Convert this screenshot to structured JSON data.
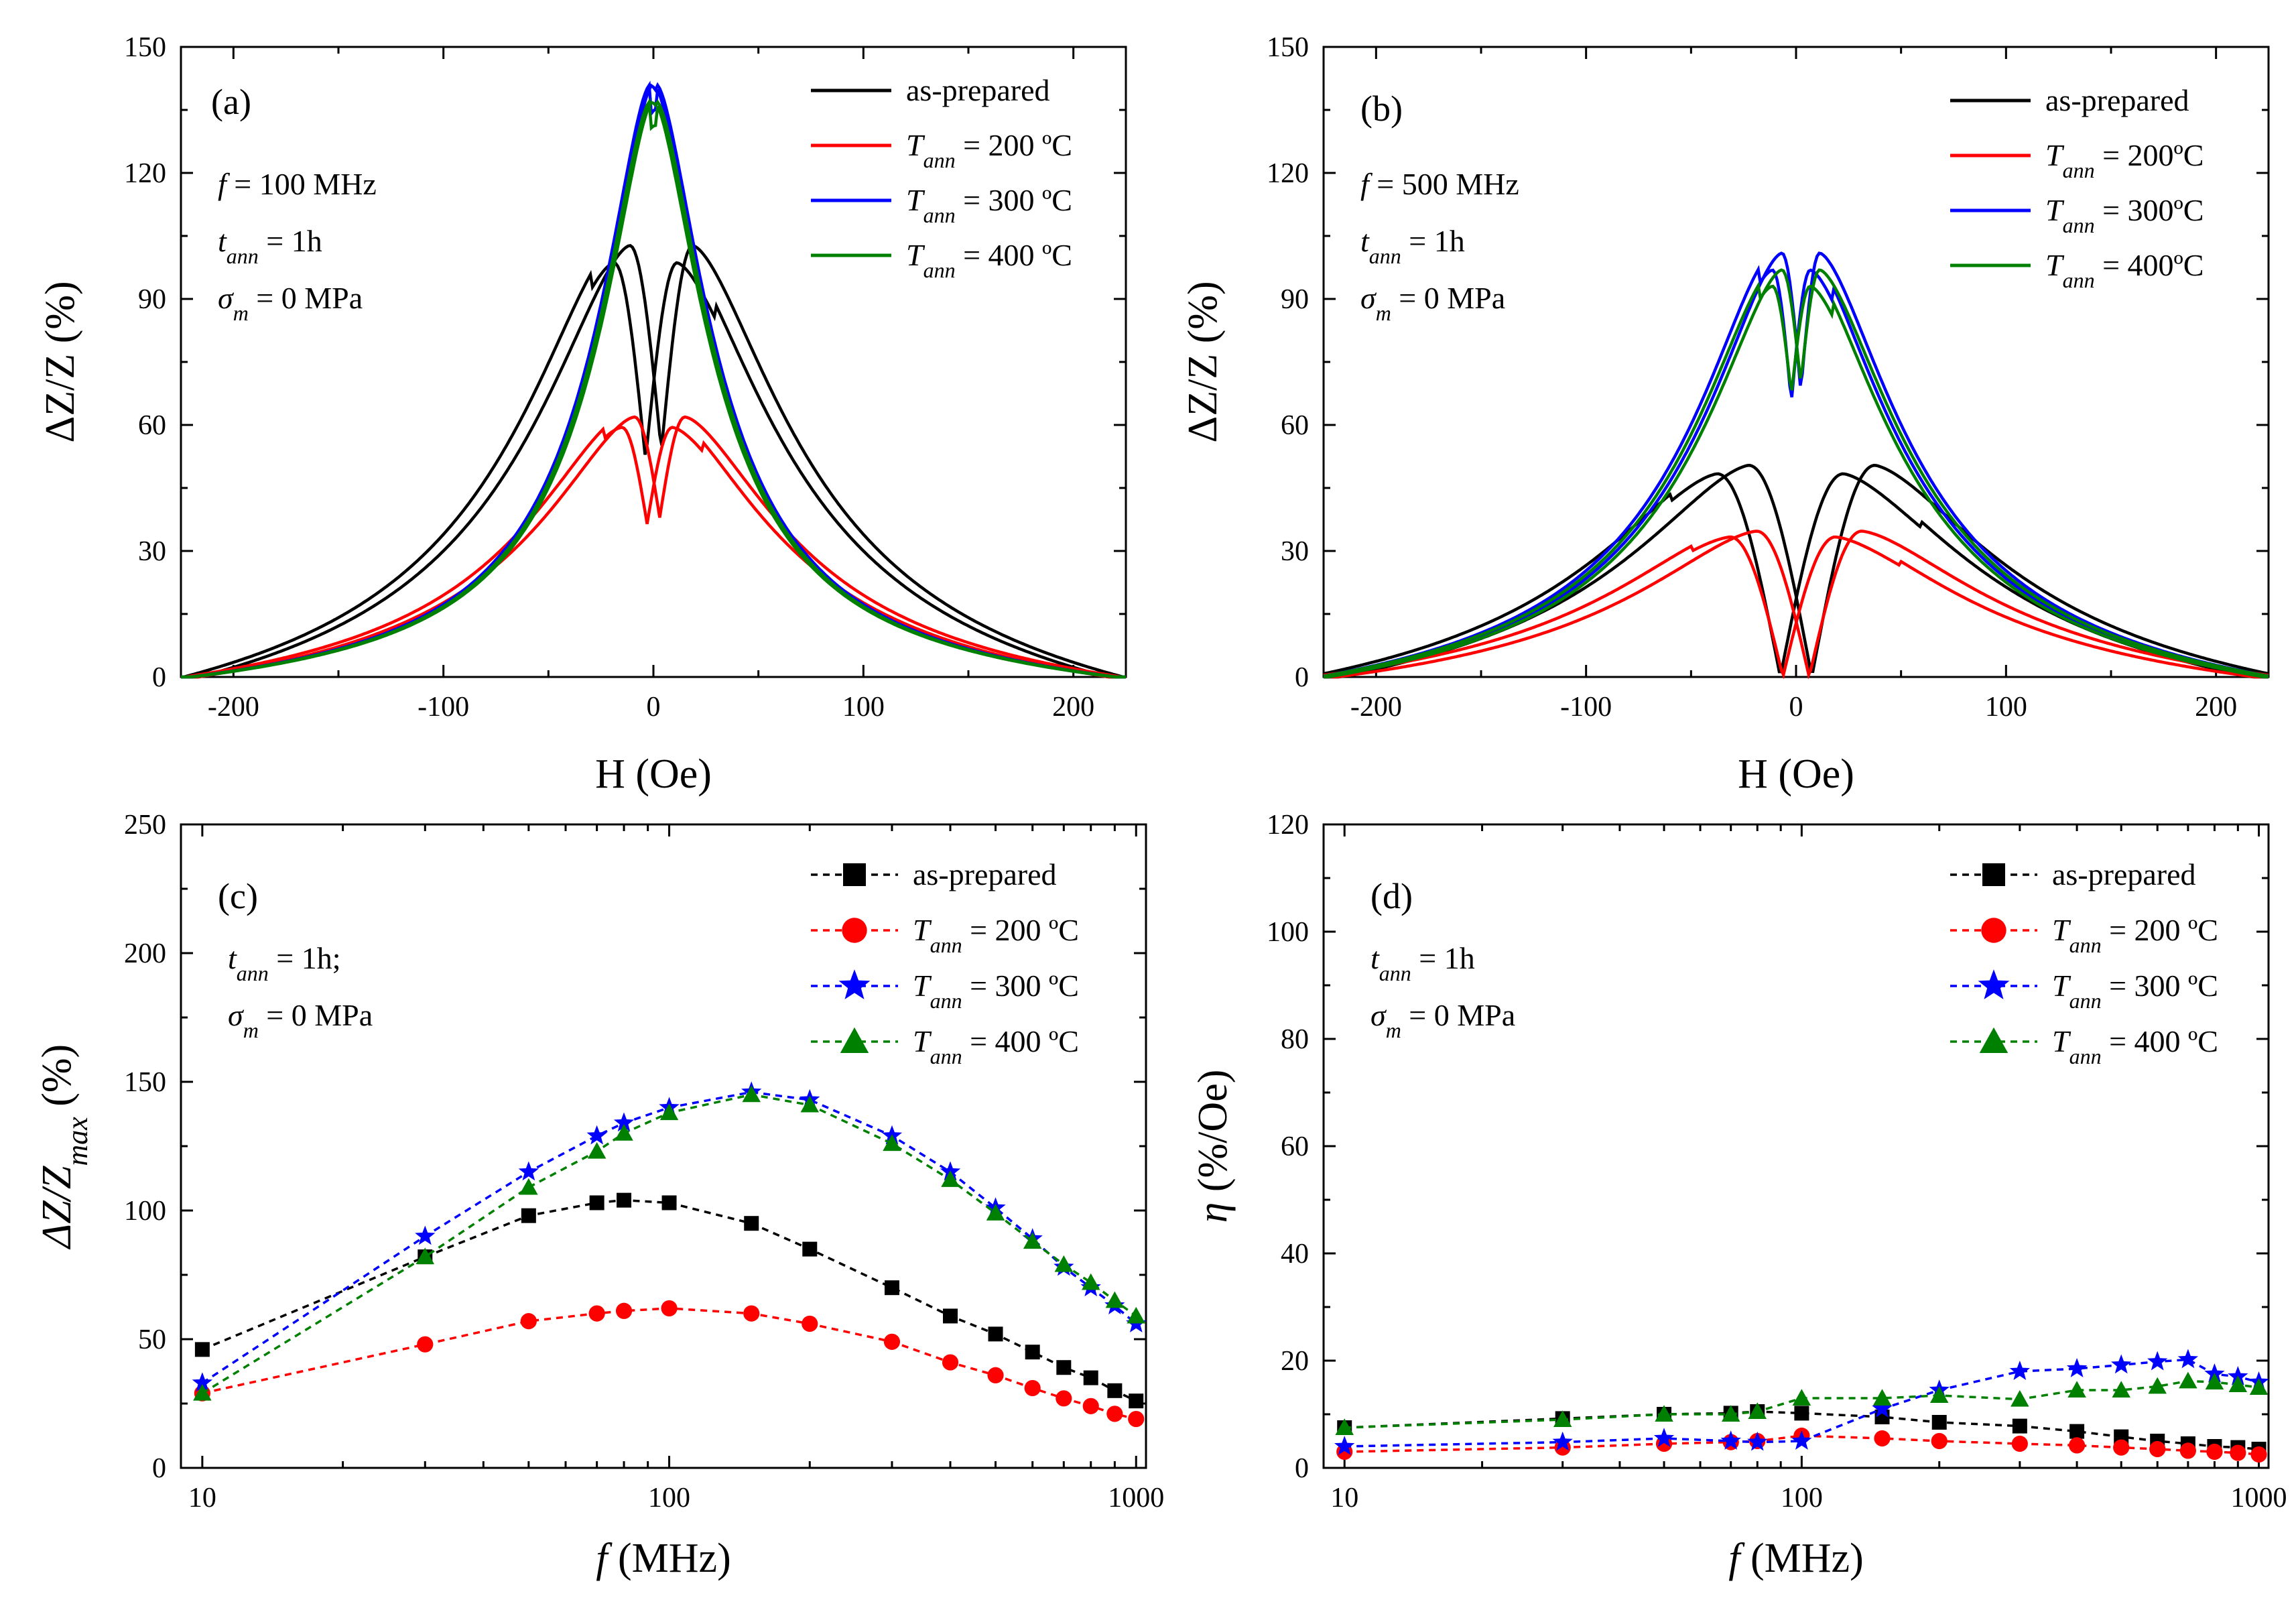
{
  "panels": [
    {
      "id": "a",
      "label": "(a)",
      "xlabel": "H (Oe)",
      "ylabel": "ΔZ/Z (%)",
      "xticks": [
        "-200",
        "-100",
        "0",
        "100",
        "200"
      ],
      "yticks": [
        "0",
        "30",
        "60",
        "90",
        "120",
        "150"
      ],
      "annotations": [
        {
          "italic": "f",
          "rest": " = 100 MHz"
        },
        {
          "italic": "t",
          "sub": "ann",
          "rest": " = 1h"
        },
        {
          "italic": "σ",
          "sub": "m",
          "rest": " = 0 MPa"
        }
      ],
      "legend": [
        {
          "text": "as-prepared"
        },
        {
          "italic": "T",
          "sub": "ann",
          "rest": " = 200 ºC"
        },
        {
          "italic": "T",
          "sub": "ann",
          "rest": " = 300 ºC"
        },
        {
          "italic": "T",
          "sub": "ann",
          "rest": " = 400 ºC"
        }
      ]
    },
    {
      "id": "b",
      "label": "(b)",
      "xlabel": "H (Oe)",
      "ylabel": "ΔZ/Z (%)",
      "xticks": [
        "-200",
        "-100",
        "0",
        "100",
        "200"
      ],
      "yticks": [
        "0",
        "30",
        "60",
        "90",
        "120",
        "150"
      ],
      "annotations": [
        {
          "italic": "f",
          "rest": " = 500 MHz"
        },
        {
          "italic": "t",
          "sub": "ann",
          "rest": " = 1h"
        },
        {
          "italic": "σ",
          "sub": "m",
          "rest": " = 0 MPa"
        }
      ],
      "legend": [
        {
          "text": "as-prepared"
        },
        {
          "italic": "T",
          "sub": "ann",
          "rest": " = 200ºC"
        },
        {
          "italic": "T",
          "sub": "ann",
          "rest": " = 300ºC"
        },
        {
          "italic": "T",
          "sub": "ann",
          "rest": " = 400ºC"
        }
      ]
    },
    {
      "id": "c",
      "label": "(c)",
      "xlabel_italic": "f",
      "xlabel_rest": " (MHz)",
      "ylabel_main": "ΔZ/Z",
      "ylabel_sub": "max",
      "ylabel_rest": " (%)",
      "xticks": [
        "10",
        "100",
        "1000"
      ],
      "yticks": [
        "0",
        "50",
        "100",
        "150",
        "200",
        "250"
      ],
      "annotations": [
        {
          "italic": "t",
          "sub": "ann",
          "rest": " = 1h;"
        },
        {
          "italic": "σ",
          "sub": "m",
          "rest": " = 0 MPa"
        }
      ],
      "legend": [
        {
          "text": "as-prepared"
        },
        {
          "italic": "T",
          "sub": "ann",
          "rest": " = 200 ºC"
        },
        {
          "italic": "T",
          "sub": "ann",
          "rest": " = 300 ºC"
        },
        {
          "italic": "T",
          "sub": "ann",
          "rest": " = 400 ºC"
        }
      ]
    },
    {
      "id": "d",
      "label": "(d)",
      "xlabel_italic": "f",
      "xlabel_rest": " (MHz)",
      "ylabel_italic": "η",
      "ylabel_rest": " (%/Oe)",
      "xticks": [
        "10",
        "100",
        "1000"
      ],
      "yticks": [
        "0",
        "20",
        "40",
        "60",
        "80",
        "100",
        "120"
      ],
      "annotations": [
        {
          "italic": "t",
          "sub": "ann",
          "rest": " = 1h"
        },
        {
          "italic": "σ",
          "sub": "m",
          "rest": " = 0 MPa"
        }
      ],
      "legend": [
        {
          "text": "as-prepared"
        },
        {
          "italic": "T",
          "sub": "ann",
          "rest": " = 200 ºC"
        },
        {
          "italic": "T",
          "sub": "ann",
          "rest": " = 300 ºC"
        },
        {
          "italic": "T",
          "sub": "ann",
          "rest": " = 400 ºC"
        }
      ]
    }
  ],
  "chart_data": [
    {
      "panel": "a",
      "type": "line",
      "title": "",
      "xlabel": "H (Oe)",
      "ylabel": "ΔZ/Z (%)",
      "xlim": [
        -225,
        225
      ],
      "ylim": [
        0,
        150
      ],
      "series": [
        {
          "name": "as-prepared",
          "color": "#000000",
          "base": 0,
          "pmax": 103,
          "dip": 54,
          "peakH": 15,
          "width": 62,
          "edge": 220
        },
        {
          "name": "T_ann = 200 ºC",
          "color": "#ff0000",
          "base": 0,
          "pmax": 62,
          "dip": 38,
          "peakH": 12,
          "width": 62,
          "edge": 220
        },
        {
          "name": "T_ann = 300 ºC",
          "color": "#0000ff",
          "base": 0,
          "pmax": 141,
          "dip": 138,
          "peakH": 1,
          "width": 33,
          "edge": 220
        },
        {
          "name": "T_ann = 400 ºC",
          "color": "#008000",
          "base": 0,
          "pmax": 137,
          "dip": 135,
          "peakH": 1,
          "width": 33,
          "edge": 220
        }
      ]
    },
    {
      "panel": "b",
      "type": "line",
      "title": "",
      "xlabel": "H (Oe)",
      "ylabel": "ΔZ/Z (%)",
      "xlim": [
        -225,
        225
      ],
      "ylim": [
        0,
        150
      ],
      "series": [
        {
          "name": "as-prepared",
          "color": "#000000",
          "base": 0,
          "pmax": 51,
          "dip": 0,
          "peakH": 30,
          "width": 82,
          "edge": 225
        },
        {
          "name": "T_ann = 200ºC",
          "color": "#ff0000",
          "base": 0,
          "pmax": 35,
          "dip": 0,
          "peakH": 25,
          "width": 82,
          "edge": 225
        },
        {
          "name": "T_ann = 300ºC",
          "color": "#0000ff",
          "base": 0,
          "pmax": 101,
          "dip": 68,
          "peakH": 9,
          "width": 52,
          "edge": 225
        },
        {
          "name": "T_ann = 400ºC",
          "color": "#008000",
          "base": 0,
          "pmax": 97,
          "dip": 70,
          "peakH": 9,
          "width": 52,
          "edge": 225
        }
      ]
    },
    {
      "panel": "c",
      "type": "scatter",
      "title": "",
      "xlabel": "f (MHz)",
      "ylabel": "ΔZ/Z_max (%)",
      "xscale": "log",
      "xlim": [
        9,
        1050
      ],
      "ylim": [
        0,
        250
      ],
      "x": [
        10,
        30,
        50,
        70,
        80,
        100,
        150,
        200,
        300,
        400,
        500,
        600,
        700,
        800,
        900,
        1000
      ],
      "series": [
        {
          "name": "as-prepared",
          "color": "#000000",
          "marker": "square",
          "values": [
            46,
            82,
            98,
            103,
            104,
            103,
            95,
            85,
            70,
            59,
            52,
            45,
            39,
            35,
            30,
            26
          ]
        },
        {
          "name": "T_ann = 200 ºC",
          "color": "#ff0000",
          "marker": "circle",
          "values": [
            29,
            48,
            57,
            60,
            61,
            62,
            60,
            56,
            49,
            41,
            36,
            31,
            27,
            24,
            21,
            19
          ]
        },
        {
          "name": "T_ann = 300 ºC",
          "color": "#0000ff",
          "marker": "star",
          "values": [
            33,
            90,
            115,
            129,
            134,
            140,
            146,
            143,
            129,
            115,
            101,
            89,
            78,
            70,
            63,
            56
          ]
        },
        {
          "name": "T_ann = 400 ºC",
          "color": "#008000",
          "marker": "triangle",
          "values": [
            29,
            82,
            109,
            123,
            130,
            138,
            145,
            141,
            126,
            112,
            99,
            88,
            79,
            72,
            65,
            59
          ]
        }
      ]
    },
    {
      "panel": "d",
      "type": "scatter",
      "title": "",
      "xlabel": "f (MHz)",
      "ylabel": "η (%/Oe)",
      "xscale": "log",
      "xlim": [
        9,
        1050
      ],
      "ylim": [
        0,
        120
      ],
      "x": [
        10,
        30,
        50,
        70,
        80,
        100,
        150,
        200,
        300,
        400,
        500,
        600,
        700,
        800,
        900,
        1000
      ],
      "series": [
        {
          "name": "as-prepared",
          "color": "#000000",
          "marker": "square",
          "values": [
            7.5,
            9.2,
            10,
            10.2,
            10.5,
            10.2,
            9.5,
            8.5,
            7.8,
            6.8,
            5.8,
            5,
            4.5,
            4,
            3.8,
            3.5
          ]
        },
        {
          "name": "T_ann = 200 ºC",
          "color": "#ff0000",
          "marker": "circle",
          "values": [
            3,
            3.8,
            4.5,
            4.8,
            5,
            6,
            5.5,
            5,
            4.5,
            4.2,
            3.8,
            3.5,
            3.2,
            3,
            2.8,
            2.5
          ]
        },
        {
          "name": "T_ann = 300 ºC",
          "color": "#0000ff",
          "marker": "star",
          "values": [
            4,
            4.8,
            5.5,
            5,
            4.8,
            5,
            11,
            14.5,
            18,
            18.5,
            19.2,
            19.8,
            20.2,
            17.5,
            17,
            16
          ]
        },
        {
          "name": "T_ann = 400 ºC",
          "color": "#008000",
          "marker": "triangle",
          "values": [
            7.5,
            9,
            10,
            10,
            10.5,
            13,
            13,
            13.5,
            12.8,
            14.5,
            14.5,
            15.2,
            16.2,
            16,
            15.5,
            15
          ]
        }
      ]
    }
  ]
}
